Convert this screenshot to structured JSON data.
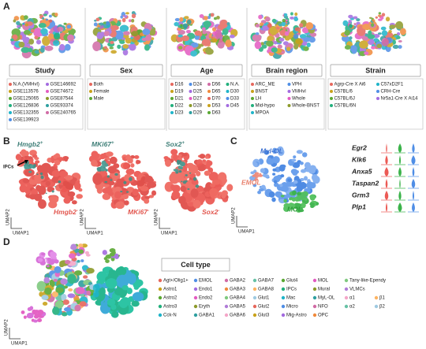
{
  "panels": {
    "A": {
      "label": "A",
      "plots": [
        {
          "title": "Study",
          "legend": [
            [
              "N.A.(VMHvl)",
              "GSE113576",
              "GSE125065",
              "GSE126836",
              "GSE132355",
              "GSE139923"
            ],
            [
              "GSE146692",
              "GSE74672",
              "GSE87544",
              "GSE93374",
              "GSE240765"
            ]
          ]
        },
        {
          "title": "Sex",
          "legend": [
            [
              "Both",
              "Female",
              "Male"
            ]
          ]
        },
        {
          "title": "Age",
          "legend": [
            [
              "D16",
              "D19",
              "D21",
              "D22",
              "D23"
            ],
            [
              "D24",
              "D25",
              "D27",
              "D28",
              "D29"
            ],
            [
              "D56",
              "D65",
              "D70",
              "D53",
              "D63"
            ],
            [
              "N.A.",
              "D30",
              "D33",
              "D45"
            ]
          ]
        },
        {
          "title": "Brain region",
          "legend": [
            [
              "ARC_ME",
              "BNST",
              "LH",
              "Mid-hypo",
              "MPOA"
            ],
            [
              "VPH",
              "VMHvl",
              "Whole",
              "Whole-BNST"
            ]
          ]
        },
        {
          "title": "Strain",
          "legend": [
            [
              "Agrp-Cre X Ai6",
              "C57BL/6",
              "C57BL/6J",
              "C57BL/6N"
            ],
            [
              "C57xD2F1",
              "CRH-Cre",
              "Nr5a1-Cre X Ai14"
            ]
          ]
        }
      ]
    },
    "B": {
      "label": "B",
      "annotation": "IPCs",
      "axis_x": "UMAP1",
      "axis_y": "UMAP2",
      "plots": [
        {
          "pos": {
            "gene": "Hmgb2",
            "sign": "+"
          },
          "neg": {
            "gene": "Hmgb2",
            "sign": "-"
          }
        },
        {
          "pos": {
            "gene": "MKi67",
            "sign": "+"
          },
          "neg": {
            "gene": "MKi67",
            "sign": "-"
          }
        },
        {
          "pos": {
            "gene": "Sox2",
            "sign": "+"
          },
          "neg": {
            "gene": "Sox2",
            "sign": "-"
          }
        }
      ]
    },
    "C": {
      "label": "C",
      "axis_x": "UMAP1",
      "axis_y": "UMAP2",
      "clusters": [
        "Myl-OL",
        "EMOL",
        "MOL"
      ],
      "genes": [
        "Egr2",
        "Klk6",
        "Anxa5",
        "Taspan2",
        "Grm3",
        "Plp1"
      ]
    },
    "D": {
      "label": "D",
      "axis_x": "UMAP1",
      "axis_y": "UMAP2",
      "legend_title": "Cell type",
      "legend": [
        [
          "Agt+/Olig1+",
          "Astro1",
          "Astro2",
          "Astro3",
          "Cck-N"
        ],
        [
          "EMOL",
          "Endo1",
          "Endo2",
          "Eryth",
          "GABA1"
        ],
        [
          "GABA2",
          "GABA3",
          "GABA4",
          "GABA5",
          "GABA6"
        ],
        [
          "GABA7",
          "GABA8",
          "Glut1",
          "Glut2",
          "Glut3"
        ],
        [
          "Glut4",
          "IPCs",
          "Mac",
          "Micro",
          "Mig-Astro"
        ],
        [
          "MOL",
          "Mural",
          "MyL-OL",
          "NFO",
          "OPC"
        ],
        [
          "Tany-like-Ependy",
          "VLMCs",
          "α1",
          "α2"
        ],
        [
          "β1",
          "β2"
        ]
      ]
    }
  }
}
